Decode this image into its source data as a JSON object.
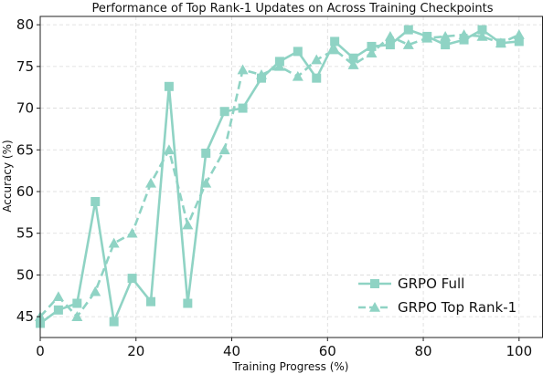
{
  "chart_data": {
    "type": "line",
    "title": "Performance of Top Rank-1 Updates on Across Training Checkpoints",
    "xlabel": "Training Progress (%)",
    "ylabel": "Accuracy (%)",
    "xlim": [
      0,
      105
    ],
    "ylim": [
      42.5,
      81
    ],
    "xticks": [
      0,
      20,
      40,
      60,
      80,
      100
    ],
    "yticks": [
      45,
      50,
      55,
      60,
      65,
      70,
      75,
      80
    ],
    "grid": true,
    "legend_position": "bottom-right",
    "color": "#8fd3c4",
    "series": [
      {
        "name": "GRPO Full",
        "marker": "square",
        "linestyle": "solid",
        "x": [
          0,
          3.8,
          7.7,
          11.5,
          15.4,
          19.2,
          23.1,
          26.9,
          30.8,
          34.6,
          38.5,
          42.3,
          46.2,
          50.0,
          53.8,
          57.7,
          61.5,
          65.4,
          69.2,
          73.1,
          76.9,
          80.8,
          84.6,
          88.5,
          92.3,
          96.2,
          100
        ],
        "values": [
          44.2,
          45.8,
          46.6,
          58.8,
          44.4,
          49.6,
          46.8,
          72.6,
          46.6,
          64.6,
          69.6,
          70.0,
          73.6,
          75.6,
          76.8,
          73.6,
          78.0,
          76.0,
          77.4,
          77.6,
          79.4,
          78.6,
          77.6,
          78.2,
          79.4,
          77.8,
          78.0
        ]
      },
      {
        "name": "GRPO Top Rank-1",
        "marker": "triangle",
        "linestyle": "dashed",
        "x": [
          0,
          3.8,
          7.7,
          11.5,
          15.4,
          19.2,
          23.1,
          26.9,
          30.8,
          34.6,
          38.5,
          42.3,
          46.2,
          50.0,
          53.8,
          57.7,
          61.5,
          65.4,
          69.2,
          73.1,
          76.9,
          80.8,
          84.6,
          88.5,
          92.3,
          96.2,
          100
        ],
        "values": [
          45.0,
          47.4,
          45.0,
          48.0,
          53.8,
          55.0,
          61.0,
          65.0,
          56.0,
          61.0,
          65.0,
          74.6,
          74.0,
          75.0,
          73.8,
          75.8,
          77.0,
          75.2,
          76.6,
          78.6,
          77.6,
          78.4,
          78.6,
          78.8,
          78.6,
          77.8,
          78.8
        ]
      }
    ]
  }
}
